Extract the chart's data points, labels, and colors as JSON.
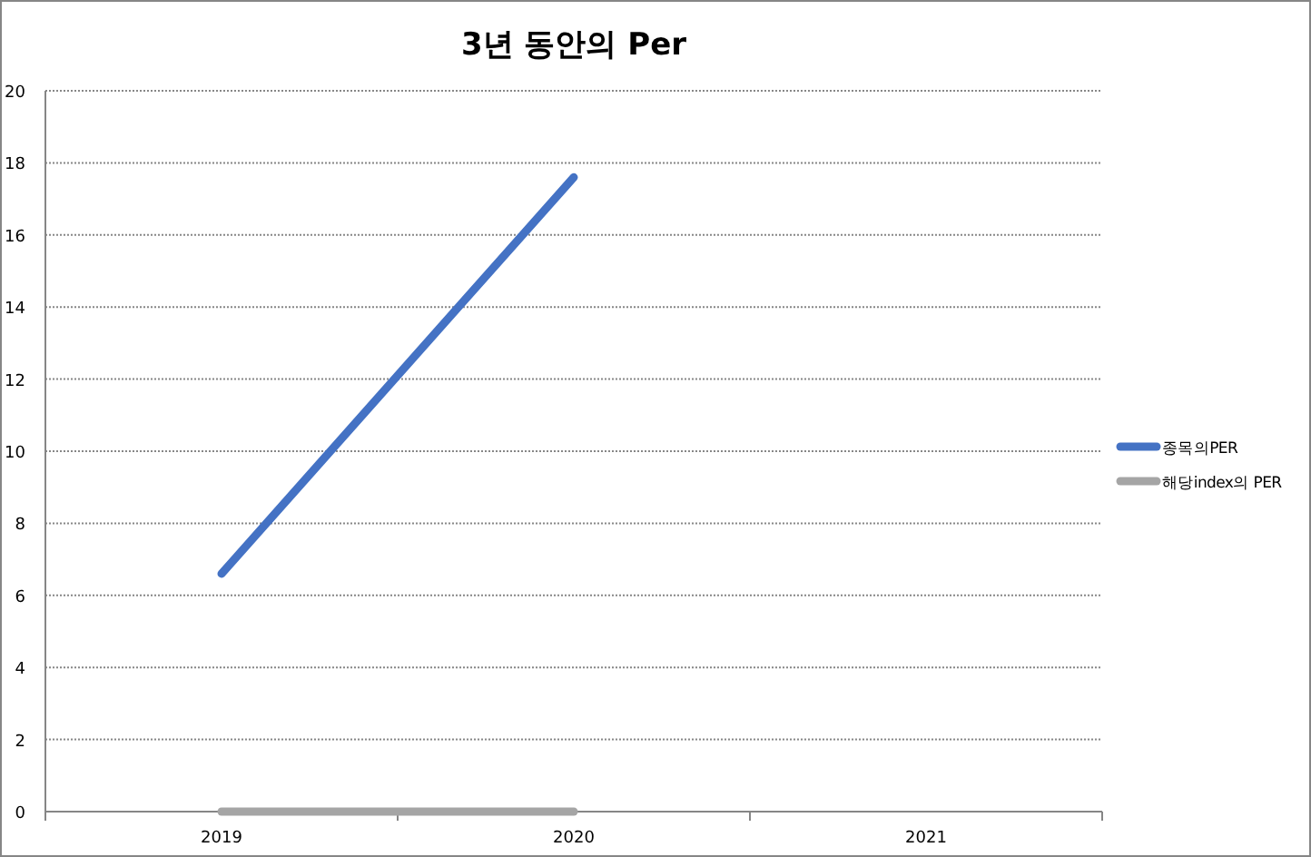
{
  "chart_data": {
    "type": "line",
    "title": "3년 동안의 Per",
    "categories": [
      "2019",
      "2020",
      "2021"
    ],
    "series": [
      {
        "name": "종목의PER",
        "color": "#4472c4",
        "values": [
          6.6,
          17.6,
          null
        ]
      },
      {
        "name": "해당index의 PER",
        "color": "#a5a5a5",
        "values": [
          0,
          0,
          null
        ]
      }
    ],
    "ylim": [
      0,
      20
    ],
    "yticks": [
      0,
      2,
      4,
      6,
      8,
      10,
      12,
      14,
      16,
      18,
      20
    ],
    "grid": "y",
    "legend": "right",
    "marker": "none",
    "line_style": "solid"
  }
}
